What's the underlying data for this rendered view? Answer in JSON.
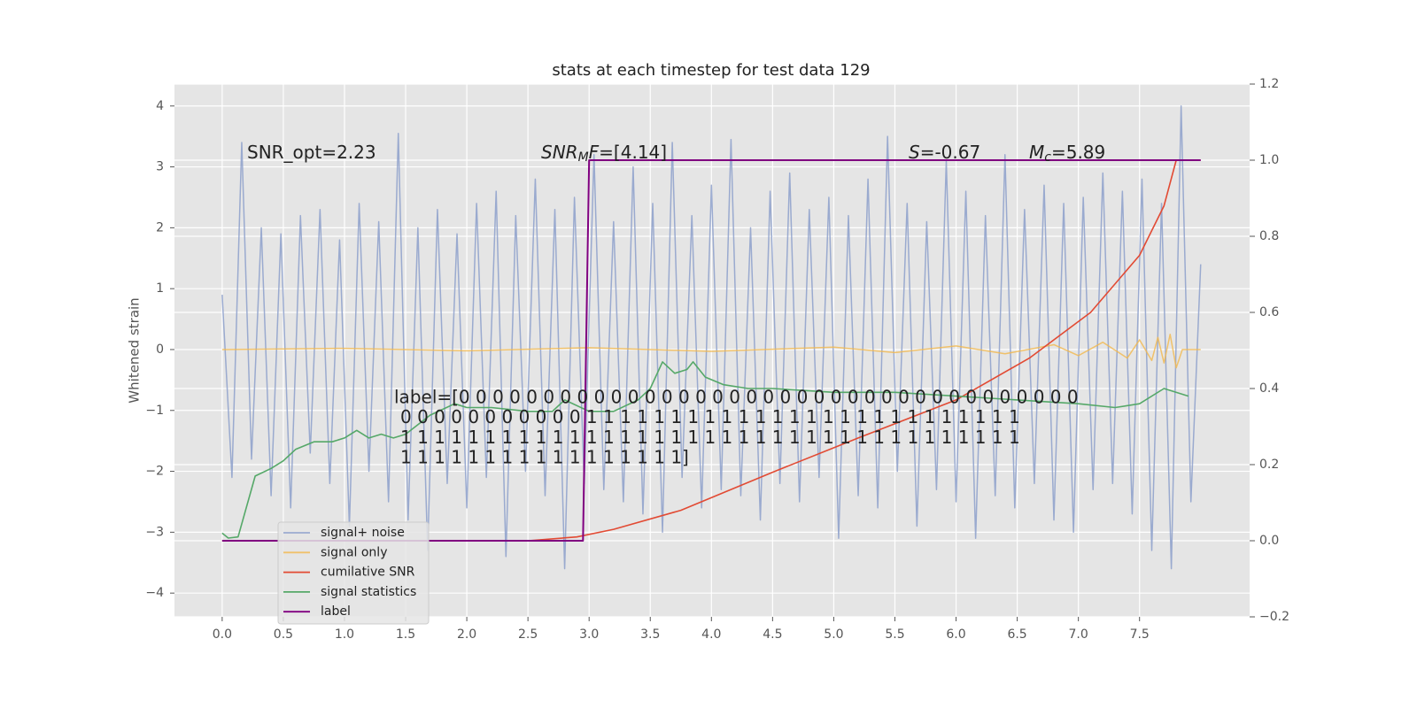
{
  "chart_data": {
    "type": "line",
    "title": "stats at each timestep for test data 129",
    "ylabel": "Whitened strain",
    "xlim": [
      -0.39,
      8.4
    ],
    "ylim": [
      -4.39,
      4.36
    ],
    "y2lim": [
      -0.2,
      1.2
    ],
    "xticks": [
      {
        "value": 0,
        "label": "0.0"
      },
      {
        "value": 0.5,
        "label": "0.5"
      },
      {
        "value": 1,
        "label": "1.0"
      },
      {
        "value": 1.5,
        "label": "1.5"
      },
      {
        "value": 2,
        "label": "2.0"
      },
      {
        "value": 2.5,
        "label": "2.5"
      },
      {
        "value": 3,
        "label": "3.0"
      },
      {
        "value": 3.5,
        "label": "3.5"
      },
      {
        "value": 4,
        "label": "4.0"
      },
      {
        "value": 4.5,
        "label": "4.5"
      },
      {
        "value": 5,
        "label": "5.0"
      },
      {
        "value": 5.5,
        "label": "5.5"
      },
      {
        "value": 6,
        "label": "6.0"
      },
      {
        "value": 6.5,
        "label": "6.5"
      },
      {
        "value": 7,
        "label": "7.0"
      },
      {
        "value": 7.5,
        "label": "7.5"
      }
    ],
    "yticks": [
      {
        "value": -4,
        "label": "−4"
      },
      {
        "value": -3,
        "label": "−3"
      },
      {
        "value": -2,
        "label": "−2"
      },
      {
        "value": -1,
        "label": "−1"
      },
      0,
      1,
      2,
      3,
      4
    ],
    "y2ticks": [
      {
        "value": -0.2,
        "label": "−0.2"
      },
      {
        "value": 0,
        "label": "0.0"
      },
      {
        "value": 0.2,
        "label": "0.2"
      },
      {
        "value": 0.4,
        "label": "0.4"
      },
      {
        "value": 0.6,
        "label": "0.6"
      },
      {
        "value": 0.8,
        "label": "0.8"
      },
      {
        "value": 1,
        "label": "1.0"
      },
      {
        "value": 1.2,
        "label": "1.2"
      }
    ],
    "grid": true,
    "legend": "lower left",
    "series": [
      {
        "name": "signal+ noise",
        "color": "#8da0cb",
        "x": [
          0,
          0.08,
          0.16,
          0.24,
          0.32,
          0.4,
          0.48,
          0.56,
          0.64,
          0.72,
          0.8,
          0.88,
          0.96,
          1.04,
          1.12,
          1.2,
          1.28,
          1.36,
          1.44,
          1.52,
          1.6,
          1.68,
          1.76,
          1.84,
          1.92,
          2,
          2.08,
          2.16,
          2.24,
          2.32,
          2.4,
          2.48,
          2.56,
          2.64,
          2.72,
          2.8,
          2.88,
          2.96,
          3.04,
          3.12,
          3.2,
          3.28,
          3.36,
          3.44,
          3.52,
          3.6,
          3.68,
          3.76,
          3.84,
          3.92,
          4,
          4.08,
          4.16,
          4.24,
          4.32,
          4.4,
          4.48,
          4.56,
          4.64,
          4.72,
          4.8,
          4.88,
          4.96,
          5.04,
          5.12,
          5.2,
          5.28,
          5.36,
          5.44,
          5.52,
          5.6,
          5.68,
          5.76,
          5.84,
          5.92,
          6,
          6.08,
          6.16,
          6.24,
          6.32,
          6.4,
          6.48,
          6.56,
          6.64,
          6.72,
          6.8,
          6.88,
          6.96,
          7.04,
          7.12,
          7.2,
          7.28,
          7.36,
          7.44,
          7.52,
          7.6,
          7.68,
          7.76,
          7.84,
          7.92,
          8
        ],
        "values": [
          0.9,
          -2.1,
          3.4,
          -1.8,
          2.0,
          -2.4,
          1.9,
          -2.6,
          2.2,
          -1.7,
          2.3,
          -2.2,
          1.8,
          -2.9,
          2.4,
          -2.0,
          2.1,
          -2.5,
          3.55,
          -2.8,
          2.0,
          -3.3,
          2.3,
          -2.2,
          1.9,
          -2.6,
          2.4,
          -2.1,
          2.6,
          -3.4,
          2.2,
          -2.0,
          2.8,
          -2.4,
          2.3,
          -3.6,
          2.5,
          -2.2,
          3.2,
          -2.3,
          2.1,
          -2.5,
          3.0,
          -2.7,
          2.4,
          -3.0,
          3.4,
          -2.1,
          2.2,
          -2.6,
          2.7,
          -2.3,
          3.45,
          -2.4,
          2.0,
          -2.8,
          2.6,
          -2.2,
          2.9,
          -2.5,
          2.3,
          -2.1,
          2.5,
          -3.1,
          2.2,
          -2.4,
          2.8,
          -2.6,
          3.5,
          -2.0,
          2.4,
          -2.9,
          2.1,
          -2.3,
          3.1,
          -2.5,
          2.6,
          -3.1,
          2.2,
          -2.4,
          3.2,
          -2.6,
          2.3,
          -2.2,
          2.7,
          -2.8,
          2.4,
          -3.0,
          2.5,
          -2.3,
          2.9,
          -2.2,
          2.6,
          -2.7,
          2.8,
          -3.3,
          2.4,
          -3.6,
          4.0,
          -2.5,
          1.4
        ]
      },
      {
        "name": "signal only",
        "color": "#f2b84b",
        "x": [
          0,
          1,
          2,
          3,
          4,
          5,
          5.5,
          6,
          6.4,
          6.8,
          7,
          7.2,
          7.4,
          7.5,
          7.6,
          7.65,
          7.7,
          7.75,
          7.8,
          7.85,
          8
        ],
        "values": [
          0,
          0.02,
          -0.02,
          0.03,
          -0.03,
          0.04,
          -0.05,
          0.06,
          -0.07,
          0.08,
          -0.1,
          0.12,
          -0.14,
          0.16,
          -0.18,
          0.2,
          -0.22,
          0.25,
          -0.3,
          0,
          0
        ]
      },
      {
        "name": "cumilative SNR",
        "color": "#e24a33",
        "axis": "y2",
        "x": [
          0,
          2.5,
          2.9,
          3.2,
          3.75,
          4.5,
          5.2,
          6.0,
          6.6,
          7.1,
          7.5,
          7.7,
          7.8,
          8.0
        ],
        "values": [
          0,
          0,
          0.01,
          0.03,
          0.08,
          0.18,
          0.27,
          0.37,
          0.48,
          0.6,
          0.75,
          0.88,
          1.0,
          1.0
        ]
      },
      {
        "name": "signal statistics",
        "color": "#55a868",
        "axis": "y2",
        "x": [
          0,
          0.05,
          0.13,
          0.27,
          0.4,
          0.5,
          0.6,
          0.75,
          0.9,
          1.0,
          1.1,
          1.2,
          1.3,
          1.4,
          1.5,
          1.7,
          1.9,
          2.0,
          2.2,
          2.5,
          2.7,
          2.8,
          3.0,
          3.2,
          3.4,
          3.5,
          3.6,
          3.7,
          3.8,
          3.85,
          3.95,
          4.1,
          4.3,
          4.5,
          5.0,
          5.5,
          6.0,
          6.5,
          7.0,
          7.3,
          7.5,
          7.7,
          7.9
        ],
        "values": [
          0.02,
          0.007,
          0.01,
          0.17,
          0.19,
          0.21,
          0.24,
          0.26,
          0.26,
          0.27,
          0.29,
          0.27,
          0.28,
          0.27,
          0.28,
          0.33,
          0.36,
          0.35,
          0.35,
          0.34,
          0.34,
          0.37,
          0.34,
          0.34,
          0.37,
          0.4,
          0.47,
          0.44,
          0.45,
          0.47,
          0.43,
          0.41,
          0.4,
          0.4,
          0.39,
          0.39,
          0.38,
          0.37,
          0.36,
          0.35,
          0.36,
          0.4,
          0.38
        ]
      },
      {
        "name": "label",
        "color": "#800080",
        "axis": "y2",
        "x": [
          0,
          2.95,
          3.0,
          8.0
        ],
        "values": [
          0,
          0,
          1,
          1
        ]
      }
    ],
    "annotations": [
      {
        "parts": [
          {
            "text": "SNR_opt=2.23"
          }
        ]
      },
      {
        "parts": [
          {
            "text": "SNR",
            "italic": true
          },
          {
            "text": "M",
            "italic": true,
            "sub": true
          },
          {
            "text": "F",
            "italic": true
          },
          {
            "text": "=[4.14]"
          }
        ]
      },
      {
        "parts": [
          {
            "text": "S",
            "italic": true
          },
          {
            "text": "=-0.67"
          }
        ]
      },
      {
        "parts": [
          {
            "text": "M",
            "italic": true
          },
          {
            "text": "c",
            "italic": true,
            "sub": true
          },
          {
            "text": "=5.89"
          }
        ]
      }
    ],
    "label_text": [
      "label=[0 0 0 0 0 0 0 0 0 0 0 0 0 0 0 0 0 0 0 0 0 0 0 0 0 0 0 0 0 0 0 0 0 0 0 0 0",
      "0 0 0 0 0 0 0 0 0 0 0 1 1 1 1 1 1 1 1 1 1 1 1 1 1 1 1 1 1 1 1 1 1 1 1 1 1",
      "1 1 1 1 1 1 1 1 1 1 1 1 1 1 1 1 1 1 1 1 1 1 1 1 1 1 1 1 1 1 1 1 1 1 1 1 1",
      "1 1 1 1 1 1 1 1 1 1 1 1 1 1 1 1 1]"
    ]
  }
}
